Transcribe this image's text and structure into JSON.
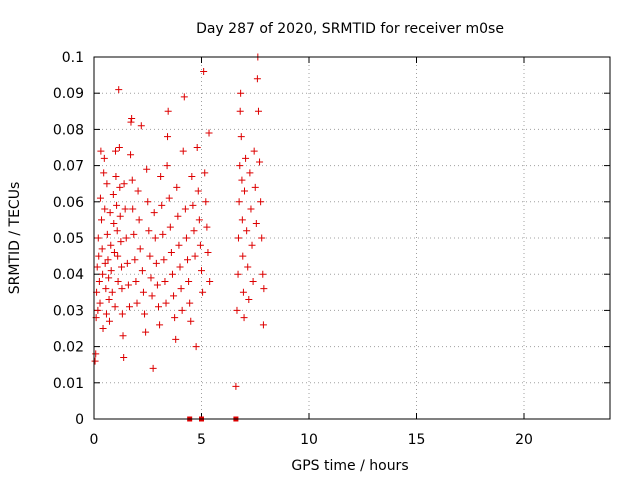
{
  "chart_data": {
    "type": "scatter",
    "title": "Day 287 of 2020, SRMTID for receiver m0se",
    "xlabel": "GPS time / hours",
    "ylabel": "SRMTID / TECUs",
    "xlim": [
      0,
      24
    ],
    "ylim": [
      0,
      0.1
    ],
    "x_ticks": [
      0,
      5,
      10,
      15,
      20
    ],
    "x_tick_labels": [
      "0",
      "5",
      "10",
      "15",
      "20"
    ],
    "y_ticks": [
      0,
      0.01,
      0.02,
      0.03,
      0.04,
      0.05,
      0.06,
      0.07,
      0.08,
      0.09,
      0.1
    ],
    "y_tick_labels": [
      "0",
      "0.01",
      "0.02",
      "0.03",
      "0.04",
      "0.05",
      "0.06",
      "0.07",
      "0.08",
      "0.09",
      "0.1"
    ],
    "grid": true,
    "marker": "+",
    "color": "#dd0000",
    "series": [
      {
        "marker": "+",
        "color": "#dd0000",
        "points": [
          [
            0.05,
            0.016
          ],
          [
            0.08,
            0.018
          ],
          [
            0.1,
            0.028
          ],
          [
            0.12,
            0.035
          ],
          [
            0.15,
            0.042
          ],
          [
            0.18,
            0.03
          ],
          [
            0.2,
            0.05
          ],
          [
            0.22,
            0.045
          ],
          [
            0.25,
            0.038
          ],
          [
            0.28,
            0.032
          ],
          [
            0.3,
            0.061
          ],
          [
            0.32,
            0.074
          ],
          [
            0.35,
            0.055
          ],
          [
            0.38,
            0.047
          ],
          [
            0.4,
            0.04
          ],
          [
            0.42,
            0.025
          ],
          [
            0.45,
            0.068
          ],
          [
            0.48,
            0.072
          ],
          [
            0.5,
            0.058
          ],
          [
            0.52,
            0.043
          ],
          [
            0.55,
            0.036
          ],
          [
            0.58,
            0.029
          ],
          [
            0.6,
            0.065
          ],
          [
            0.62,
            0.051
          ],
          [
            0.65,
            0.044
          ],
          [
            0.68,
            0.039
          ],
          [
            0.7,
            0.033
          ],
          [
            0.72,
            0.027
          ],
          [
            0.75,
            0.057
          ],
          [
            0.78,
            0.048
          ],
          [
            0.8,
            0.041
          ],
          [
            0.85,
            0.035
          ],
          [
            0.9,
            0.062
          ],
          [
            0.92,
            0.054
          ],
          [
            0.95,
            0.046
          ],
          [
            0.98,
            0.031
          ],
          [
            1.0,
            0.074
          ],
          [
            1.02,
            0.067
          ],
          [
            1.05,
            0.059
          ],
          [
            1.08,
            0.052
          ],
          [
            1.1,
            0.045
          ],
          [
            1.12,
            0.038
          ],
          [
            1.15,
            0.091
          ],
          [
            1.18,
            0.075
          ],
          [
            1.2,
            0.064
          ],
          [
            1.22,
            0.056
          ],
          [
            1.25,
            0.049
          ],
          [
            1.28,
            0.042
          ],
          [
            1.3,
            0.036
          ],
          [
            1.32,
            0.029
          ],
          [
            1.35,
            0.023
          ],
          [
            1.38,
            0.017
          ],
          [
            1.4,
            0.065
          ],
          [
            1.45,
            0.058
          ],
          [
            1.5,
            0.05
          ],
          [
            1.55,
            0.043
          ],
          [
            1.6,
            0.037
          ],
          [
            1.65,
            0.031
          ],
          [
            1.7,
            0.073
          ],
          [
            1.72,
            0.082
          ],
          [
            1.75,
            0.083
          ],
          [
            1.78,
            0.066
          ],
          [
            1.8,
            0.058
          ],
          [
            1.85,
            0.051
          ],
          [
            1.9,
            0.044
          ],
          [
            1.95,
            0.038
          ],
          [
            2.0,
            0.032
          ],
          [
            2.05,
            0.063
          ],
          [
            2.1,
            0.055
          ],
          [
            2.15,
            0.047
          ],
          [
            2.2,
            0.081
          ],
          [
            2.25,
            0.041
          ],
          [
            2.3,
            0.035
          ],
          [
            2.35,
            0.029
          ],
          [
            2.4,
            0.024
          ],
          [
            2.45,
            0.069
          ],
          [
            2.5,
            0.06
          ],
          [
            2.55,
            0.052
          ],
          [
            2.6,
            0.045
          ],
          [
            2.65,
            0.039
          ],
          [
            2.7,
            0.034
          ],
          [
            2.75,
            0.014
          ],
          [
            2.8,
            0.057
          ],
          [
            2.85,
            0.05
          ],
          [
            2.9,
            0.043
          ],
          [
            2.95,
            0.037
          ],
          [
            3.0,
            0.031
          ],
          [
            3.05,
            0.026
          ],
          [
            3.1,
            0.067
          ],
          [
            3.15,
            0.059
          ],
          [
            3.2,
            0.051
          ],
          [
            3.25,
            0.044
          ],
          [
            3.3,
            0.038
          ],
          [
            3.35,
            0.032
          ],
          [
            3.4,
            0.07
          ],
          [
            3.42,
            0.078
          ],
          [
            3.45,
            0.085
          ],
          [
            3.5,
            0.061
          ],
          [
            3.55,
            0.053
          ],
          [
            3.6,
            0.046
          ],
          [
            3.65,
            0.04
          ],
          [
            3.7,
            0.034
          ],
          [
            3.75,
            0.028
          ],
          [
            3.8,
            0.022
          ],
          [
            3.85,
            0.064
          ],
          [
            3.9,
            0.056
          ],
          [
            3.95,
            0.048
          ],
          [
            4.0,
            0.042
          ],
          [
            4.05,
            0.036
          ],
          [
            4.1,
            0.03
          ],
          [
            4.15,
            0.074
          ],
          [
            4.2,
            0.089
          ],
          [
            4.25,
            0.058
          ],
          [
            4.3,
            0.05
          ],
          [
            4.35,
            0.044
          ],
          [
            4.4,
            0.038
          ],
          [
            4.45,
            0.032
          ],
          [
            4.5,
            0.027
          ],
          [
            4.55,
            0.067
          ],
          [
            4.6,
            0.059
          ],
          [
            4.65,
            0.052
          ],
          [
            4.7,
            0.045
          ],
          [
            4.75,
            0.02
          ],
          [
            4.8,
            0.075
          ],
          [
            4.85,
            0.063
          ],
          [
            4.9,
            0.055
          ],
          [
            4.95,
            0.048
          ],
          [
            5.0,
            0.041
          ],
          [
            5.05,
            0.035
          ],
          [
            5.1,
            0.096
          ],
          [
            5.15,
            0.068
          ],
          [
            5.2,
            0.06
          ],
          [
            5.25,
            0.053
          ],
          [
            5.3,
            0.046
          ],
          [
            5.35,
            0.079
          ],
          [
            5.38,
            0.038
          ],
          [
            6.6,
            0.009
          ],
          [
            6.65,
            0.03
          ],
          [
            6.7,
            0.04
          ],
          [
            6.72,
            0.05
          ],
          [
            6.75,
            0.06
          ],
          [
            6.78,
            0.07
          ],
          [
            6.8,
            0.085
          ],
          [
            6.82,
            0.09
          ],
          [
            6.85,
            0.078
          ],
          [
            6.88,
            0.066
          ],
          [
            6.9,
            0.055
          ],
          [
            6.92,
            0.045
          ],
          [
            6.95,
            0.035
          ],
          [
            6.98,
            0.028
          ],
          [
            7.0,
            0.063
          ],
          [
            7.05,
            0.072
          ],
          [
            7.1,
            0.052
          ],
          [
            7.15,
            0.042
          ],
          [
            7.2,
            0.033
          ],
          [
            7.25,
            0.068
          ],
          [
            7.3,
            0.058
          ],
          [
            7.35,
            0.048
          ],
          [
            7.4,
            0.038
          ],
          [
            7.45,
            0.074
          ],
          [
            7.5,
            0.064
          ],
          [
            7.55,
            0.054
          ],
          [
            7.6,
            0.094
          ],
          [
            7.62,
            0.1
          ],
          [
            7.65,
            0.085
          ],
          [
            7.7,
            0.071
          ],
          [
            7.75,
            0.06
          ],
          [
            7.8,
            0.05
          ],
          [
            7.85,
            0.04
          ],
          [
            7.88,
            0.026
          ],
          [
            7.9,
            0.036
          ]
        ]
      },
      {
        "marker": "square",
        "color": "#dd0000",
        "points": [
          [
            4.45,
            0
          ],
          [
            5.0,
            0
          ],
          [
            6.6,
            0
          ]
        ]
      }
    ]
  }
}
